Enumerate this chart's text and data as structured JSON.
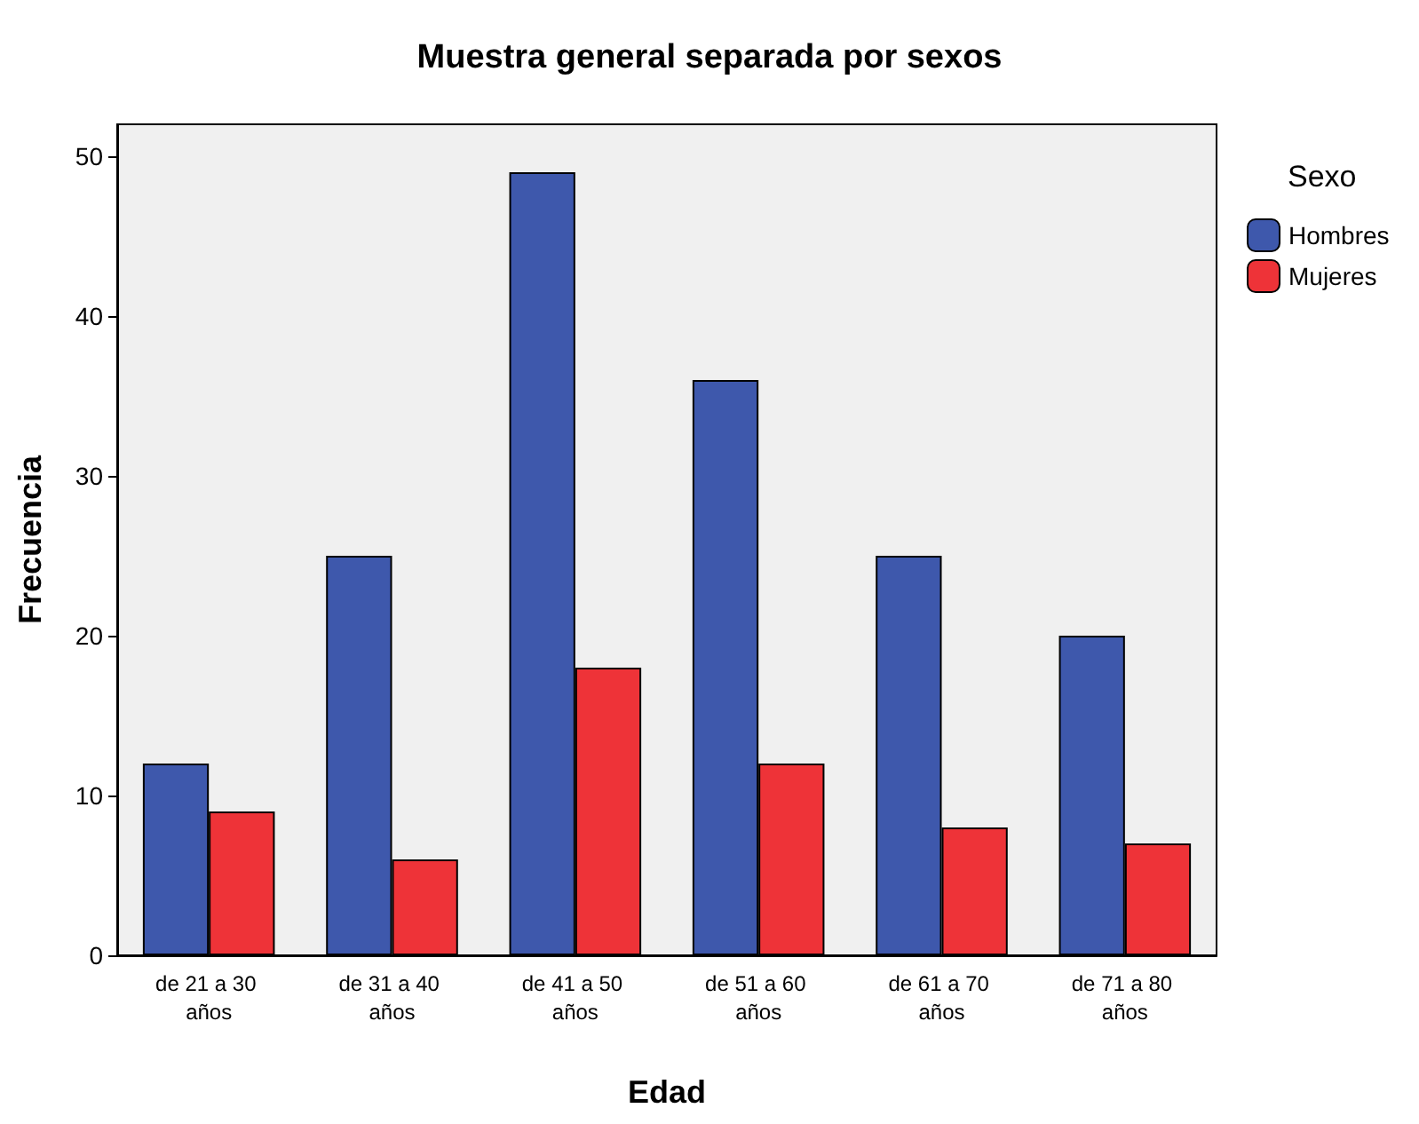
{
  "chart_data": {
    "type": "bar",
    "title": "Muestra general separada por sexos",
    "xlabel": "Edad",
    "ylabel": "Frecuencia",
    "legend_title": "Sexo",
    "categories": [
      "de 21 a 30 años",
      "de 31 a 40 años",
      "de 41 a 50 años",
      "de 51 a 60 años",
      "de 61 a 70 años",
      "de 71 a 80 años"
    ],
    "series": [
      {
        "name": "Hombres",
        "color": "#3e58ac",
        "values": [
          12,
          25,
          49,
          36,
          25,
          20
        ]
      },
      {
        "name": "Mujeres",
        "color": "#ee3338",
        "values": [
          9,
          6,
          18,
          12,
          8,
          7
        ]
      }
    ],
    "ylim": [
      0,
      52
    ],
    "yticks": [
      0,
      10,
      20,
      30,
      40,
      50
    ],
    "grid": false,
    "legend": "top right"
  }
}
